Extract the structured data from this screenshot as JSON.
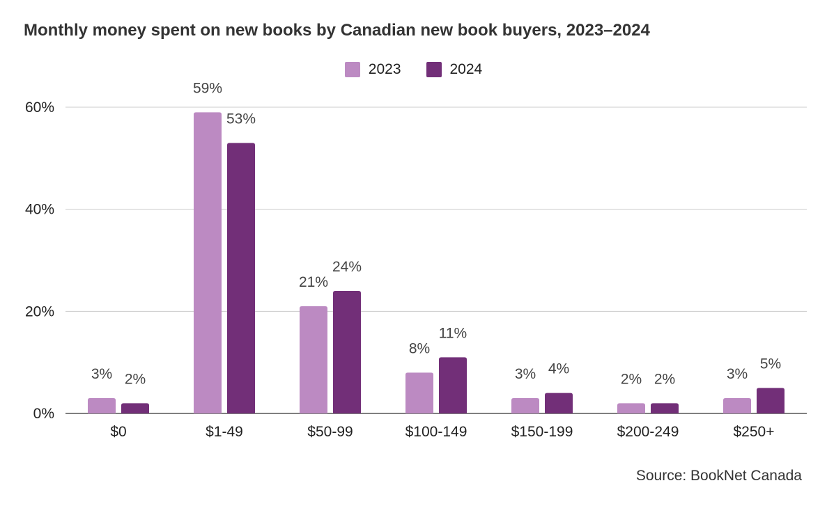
{
  "chart_data": {
    "type": "bar",
    "title": "Monthly money spent on new books by Canadian new book buyers, 2023–2024",
    "categories": [
      "$0",
      "$1-49",
      "$50-99",
      "$100-149",
      "$150-199",
      "$200-249",
      "$250+"
    ],
    "series": [
      {
        "name": "2023",
        "color": "#bc8ac2",
        "values": [
          3,
          59,
          21,
          8,
          3,
          2,
          3
        ]
      },
      {
        "name": "2024",
        "color": "#722f78",
        "values": [
          2,
          53,
          24,
          11,
          4,
          2,
          5
        ]
      }
    ],
    "yticks": [
      "0%",
      "20%",
      "40%",
      "60%"
    ],
    "ylim": [
      0,
      60
    ],
    "grid": true,
    "legend_position": "top-center",
    "value_suffix": "%"
  },
  "source": "Source: BookNet Canada"
}
